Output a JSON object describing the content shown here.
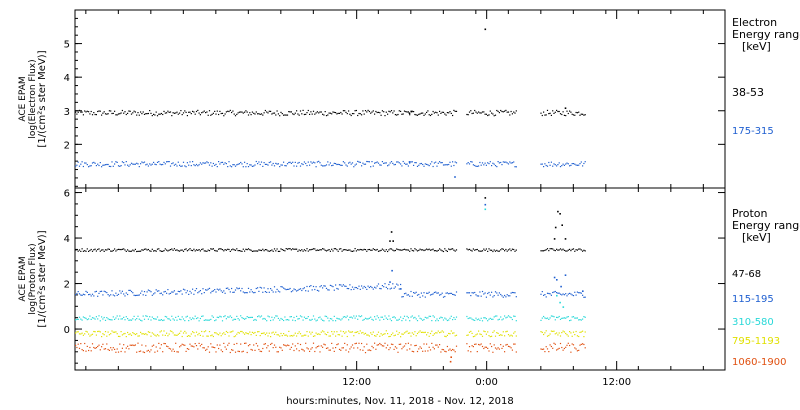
{
  "xaxis": {
    "label": "hours:minutes, Nov. 11, 2018 - Nov. 12, 2018",
    "range_hours": [
      -14,
      46
    ],
    "ticks": [
      {
        "h": 12,
        "label": "12:00"
      },
      {
        "h": 24,
        "label": "0:00"
      },
      {
        "h": 36,
        "label": "12:00"
      }
    ],
    "minor_step_hours": 3
  },
  "chart_data": [
    {
      "type": "scatter",
      "instrument": "ACE EPAM",
      "ylabel_lines": [
        "ACE EPAM",
        "log(Electron Flux)",
        "[1/(cm²s ster MeV)]"
      ],
      "ylim": [
        0.7,
        6.0
      ],
      "yticks": [
        2,
        3,
        4,
        5
      ],
      "legend_title": [
        "Electron",
        "Energy range",
        "[keV]"
      ],
      "gaps_hours": [
        [
          21.2,
          22.1
        ],
        [
          26.8,
          28.9
        ]
      ],
      "data_end_hours": 33.1,
      "series": [
        {
          "name": "38-53",
          "color": "#000000",
          "level": 2.95,
          "noise": 0.05,
          "points": [
            [
              17.0,
              3.0
            ],
            [
              16.8,
              2.95
            ],
            [
              23.8,
              5.45
            ],
            [
              31.2,
              3.1
            ]
          ]
        },
        {
          "name": "175-315",
          "color": "#1f5fd0",
          "level": 1.43,
          "noise": 0.05,
          "points": [
            [
              21.0,
              1.05
            ],
            [
              16.8,
              1.5
            ]
          ]
        }
      ]
    },
    {
      "type": "scatter",
      "instrument": "ACE EPAM",
      "ylabel_lines": [
        "ACE EPAM",
        "log(Proton Flux)",
        "[1/(cm²s ster MeV)]"
      ],
      "ylim": [
        -1.8,
        6.2
      ],
      "yticks": [
        0,
        2,
        4,
        6
      ],
      "legend_title": [
        "Proton",
        "Energy range",
        "[keV]"
      ],
      "gaps_hours": [
        [
          21.2,
          22.1
        ],
        [
          26.8,
          28.9
        ]
      ],
      "data_end_hours": 33.1,
      "series": [
        {
          "name": "47-68",
          "color": "#000000",
          "level": 3.5,
          "noise": 0.04,
          "points": [
            [
              15.0,
              3.9
            ],
            [
              15.15,
              4.3
            ],
            [
              15.3,
              3.9
            ],
            [
              23.8,
              5.8
            ],
            [
              30.3,
              4.5
            ],
            [
              30.5,
              5.2
            ],
            [
              30.7,
              5.1
            ],
            [
              30.9,
              4.6
            ],
            [
              31.2,
              4.0
            ],
            [
              30.2,
              4.0
            ]
          ]
        },
        {
          "name": "115-195",
          "color": "#1f5fd0",
          "level": 1.55,
          "noise": 0.08,
          "points": [
            [
              15.0,
              2.1
            ],
            [
              15.2,
              2.6
            ],
            [
              16.0,
              1.8
            ],
            [
              23.8,
              5.5
            ],
            [
              30.2,
              2.3
            ],
            [
              30.4,
              2.2
            ],
            [
              30.8,
              1.9
            ],
            [
              31.2,
              2.4
            ],
            [
              32.8,
              1.7
            ]
          ]
        },
        {
          "name": "310-580",
          "color": "#28d8d8",
          "level": 0.5,
          "noise": 0.07,
          "points": [
            [
              23.8,
              5.3
            ],
            [
              30.4,
              1.5
            ],
            [
              30.7,
              1.2
            ],
            [
              31.0,
              1.0
            ]
          ]
        },
        {
          "name": "795-1193",
          "color": "#e0e000",
          "level": -0.18,
          "noise": 0.08,
          "points": []
        },
        {
          "name": "1060-1900",
          "color": "#e05010",
          "level": -0.8,
          "noise": 0.13,
          "points": [
            [
              20.6,
              -1.4
            ],
            [
              20.65,
              -1.2
            ]
          ]
        }
      ]
    }
  ]
}
